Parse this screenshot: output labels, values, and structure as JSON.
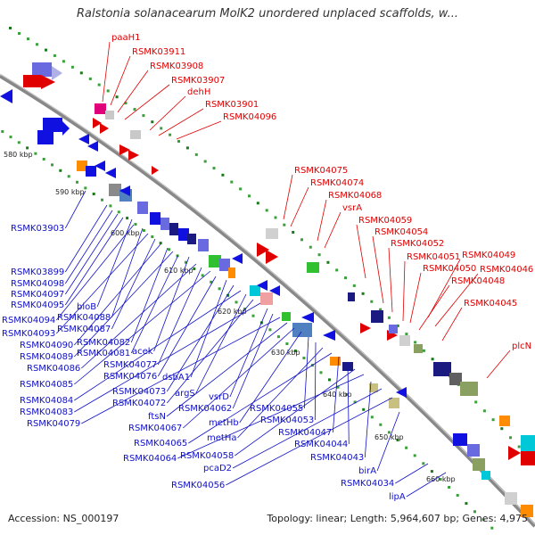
{
  "header": {
    "title": "Ralstonia solanacearum MolK2 unordered unplaced scaffolds, w..."
  },
  "footer": {
    "accession": "Accession: NS_000197",
    "topology": "Topology: linear; Length: 5,964,607 bp; Genes: 4,975"
  },
  "colors": {
    "backbone": "#808080",
    "forward_label": "#e00000",
    "reverse_label": "#1010c8",
    "dots": "#2a8a2a"
  },
  "kbp_ticks": [
    "580 kbp",
    "590 kbp",
    "600 kbp",
    "610 kbp",
    "620 kbp",
    "630 kbp",
    "640 kbp",
    "650 kbp",
    "660 kbp"
  ],
  "upper_labels": [
    "paaH1",
    "RSMK03911",
    "RSMK03908",
    "RSMK03907",
    "dehH",
    "RSMK03901",
    "RSMK04096",
    "RSMK04075",
    "RSMK04074",
    "RSMK04068",
    "vsrA",
    "RSMK04059",
    "RSMK04054",
    "RSMK04052",
    "RSMK04051",
    "RSMK04049",
    "RSMK04050",
    "RSMK04046",
    "RSMK04048",
    "RSMK04045",
    "plcN"
  ],
  "lower_labels": [
    "RSMK03903",
    "RSMK03899",
    "RSMK04098",
    "RSMK04097",
    "RSMK04095",
    "bioB",
    "RSMK04094",
    "RSMK04088",
    "RSMK04093",
    "RSMK04087",
    "RSMK04090",
    "RSMK04082",
    "RSMK04089",
    "RSMK04081",
    "acek",
    "RSMK04086",
    "RSMK04077",
    "RSMK04085",
    "RSMK04076",
    "dsbA1",
    "RSMK04073",
    "RSMK04084",
    "argS",
    "RSMK04072",
    "RSMK04083",
    "vsrD",
    "RSMK04062",
    "RSMK04079",
    "ftsN",
    "RSMK04067",
    "metHb",
    "RSMK04055",
    "RSMK04053",
    "metHa",
    "RSMK04065",
    "RSMK04047",
    "RSMK04044",
    "RSMK04058",
    "RSMK04064",
    "RSMK04043",
    "pcaD2",
    "RSMK04056",
    "birA",
    "RSMK04034",
    "lipA"
  ]
}
